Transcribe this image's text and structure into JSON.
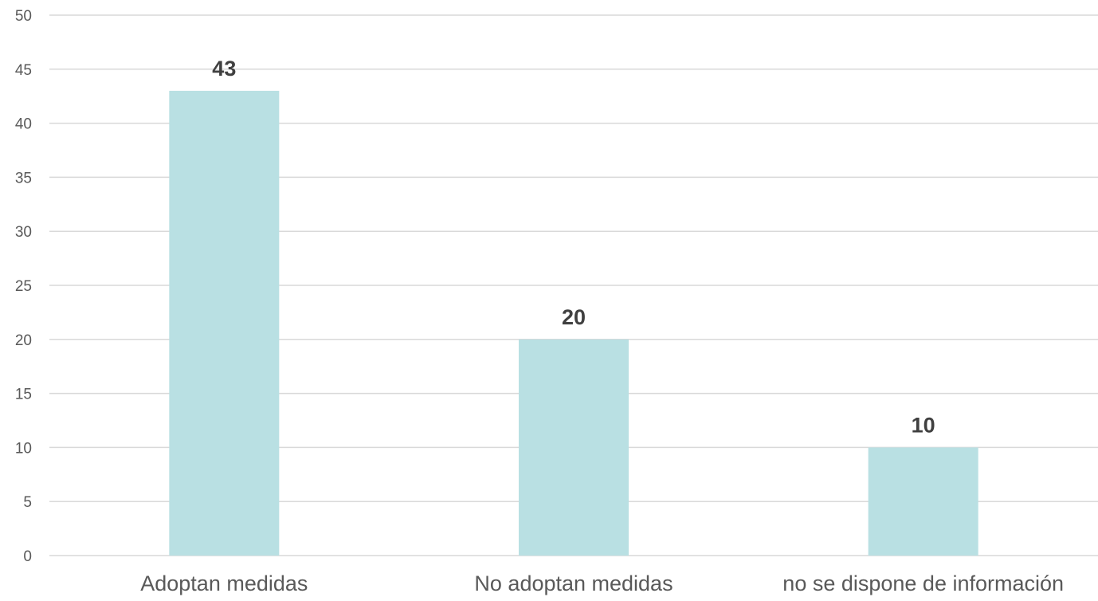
{
  "chart_data": {
    "type": "bar",
    "categories": [
      "Adoptan medidas",
      "No adoptan medidas",
      "no se dispone de información"
    ],
    "values": [
      43,
      20,
      10
    ],
    "data_labels": [
      "43",
      "20",
      "10"
    ],
    "ylim": [
      0,
      50
    ],
    "y_ticks": [
      "0",
      "5",
      "10",
      "15",
      "20",
      "25",
      "30",
      "35",
      "40",
      "45",
      "50"
    ],
    "grid": true,
    "legend": "none",
    "colors": {
      "bar": "#b9e0e3",
      "grid": "#d9d9d9"
    }
  }
}
